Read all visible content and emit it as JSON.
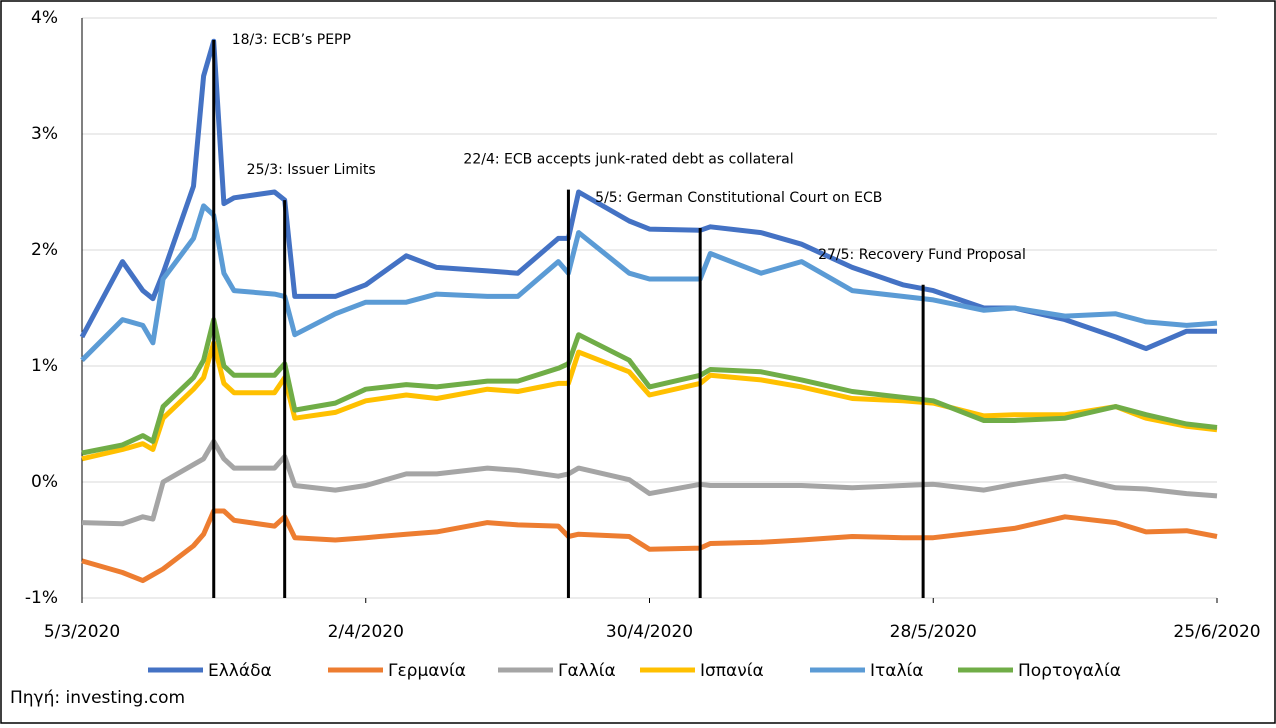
{
  "chart_data": {
    "type": "line",
    "x": [
      "2020-03-05",
      "2020-03-09",
      "2020-03-11",
      "2020-03-12",
      "2020-03-13",
      "2020-03-16",
      "2020-03-17",
      "2020-03-18",
      "2020-03-19",
      "2020-03-20",
      "2020-03-24",
      "2020-03-25",
      "2020-03-26",
      "2020-03-30",
      "2020-04-02",
      "2020-04-06",
      "2020-04-09",
      "2020-04-14",
      "2020-04-17",
      "2020-04-21",
      "2020-04-22",
      "2020-04-23",
      "2020-04-28",
      "2020-04-30",
      "2020-05-05",
      "2020-05-06",
      "2020-05-11",
      "2020-05-15",
      "2020-05-20",
      "2020-05-25",
      "2020-05-28",
      "2020-06-02",
      "2020-06-05",
      "2020-06-10",
      "2020-06-15",
      "2020-06-18",
      "2020-06-22",
      "2020-06-25"
    ],
    "series": [
      {
        "name": "Ελλάδα",
        "color": "#4472c4",
        "values": [
          1.25,
          1.9,
          1.65,
          1.58,
          1.8,
          2.55,
          3.5,
          3.8,
          2.4,
          2.45,
          2.5,
          2.43,
          1.6,
          1.6,
          1.7,
          1.95,
          1.85,
          1.82,
          1.8,
          2.1,
          2.1,
          2.5,
          2.25,
          2.18,
          2.17,
          2.2,
          2.15,
          2.05,
          1.85,
          1.7,
          1.65,
          1.5,
          1.5,
          1.4,
          1.25,
          1.15,
          1.3,
          1.3
        ]
      },
      {
        "name": "Γερμανία",
        "color": "#ed7d31",
        "values": [
          -0.68,
          -0.78,
          -0.85,
          -0.8,
          -0.75,
          -0.55,
          -0.45,
          -0.25,
          -0.25,
          -0.33,
          -0.38,
          -0.3,
          -0.48,
          -0.5,
          -0.48,
          -0.45,
          -0.43,
          -0.35,
          -0.37,
          -0.38,
          -0.47,
          -0.45,
          -0.47,
          -0.58,
          -0.57,
          -0.53,
          -0.52,
          -0.5,
          -0.47,
          -0.48,
          -0.48,
          -0.43,
          -0.4,
          -0.3,
          -0.35,
          -0.43,
          -0.42,
          -0.47
        ]
      },
      {
        "name": "Γαλλία",
        "color": "#a5a5a5",
        "values": [
          -0.35,
          -0.36,
          -0.3,
          -0.32,
          0.0,
          0.15,
          0.2,
          0.35,
          0.2,
          0.12,
          0.12,
          0.22,
          -0.03,
          -0.07,
          -0.03,
          0.07,
          0.07,
          0.12,
          0.1,
          0.05,
          0.07,
          0.12,
          0.02,
          -0.1,
          -0.02,
          -0.03,
          -0.03,
          -0.03,
          -0.05,
          -0.03,
          -0.02,
          -0.07,
          -0.02,
          0.05,
          -0.05,
          -0.06,
          -0.1,
          -0.12
        ]
      },
      {
        "name": "Ισπανία",
        "color": "#ffc000",
        "values": [
          0.2,
          0.28,
          0.33,
          0.28,
          0.55,
          0.8,
          0.9,
          1.2,
          0.85,
          0.77,
          0.77,
          0.9,
          0.55,
          0.6,
          0.7,
          0.75,
          0.72,
          0.8,
          0.78,
          0.85,
          0.85,
          1.12,
          0.95,
          0.75,
          0.85,
          0.92,
          0.88,
          0.82,
          0.72,
          0.7,
          0.68,
          0.57,
          0.58,
          0.58,
          0.65,
          0.55,
          0.48,
          0.45
        ]
      },
      {
        "name": "Ιταλία",
        "color": "#5b9bd5",
        "values": [
          1.05,
          1.4,
          1.35,
          1.2,
          1.75,
          2.1,
          2.38,
          2.3,
          1.8,
          1.65,
          1.62,
          1.6,
          1.27,
          1.45,
          1.55,
          1.55,
          1.62,
          1.6,
          1.6,
          1.9,
          1.8,
          2.15,
          1.8,
          1.75,
          1.75,
          1.97,
          1.8,
          1.9,
          1.65,
          1.6,
          1.57,
          1.48,
          1.5,
          1.43,
          1.45,
          1.38,
          1.35,
          1.37
        ]
      },
      {
        "name": "Πορτογαλία",
        "color": "#70ad47",
        "values": [
          0.25,
          0.32,
          0.4,
          0.35,
          0.65,
          0.9,
          1.05,
          1.4,
          1.0,
          0.92,
          0.92,
          1.02,
          0.62,
          0.68,
          0.8,
          0.84,
          0.82,
          0.87,
          0.87,
          0.98,
          1.02,
          1.27,
          1.05,
          0.82,
          0.92,
          0.97,
          0.95,
          0.88,
          0.78,
          0.73,
          0.7,
          0.53,
          0.53,
          0.55,
          0.65,
          0.58,
          0.5,
          0.47
        ]
      }
    ],
    "xlim": [
      "2020-03-05",
      "2020-06-25"
    ],
    "xticks": [
      {
        "value": "2020-03-05",
        "label": "5/3/2020"
      },
      {
        "value": "2020-04-02",
        "label": "2/4/2020"
      },
      {
        "value": "2020-04-30",
        "label": "30/4/2020"
      },
      {
        "value": "2020-05-28",
        "label": "28/5/2020"
      },
      {
        "value": "2020-06-25",
        "label": "25/6/2020"
      }
    ],
    "ylim": [
      -1,
      4
    ],
    "yticks": [
      {
        "value": -1,
        "label": "-1%"
      },
      {
        "value": 0,
        "label": "0%"
      },
      {
        "value": 1,
        "label": "1%"
      },
      {
        "value": 2,
        "label": "2%"
      },
      {
        "value": 3,
        "label": "3%"
      },
      {
        "value": 4,
        "label": "4%"
      }
    ],
    "grid": true,
    "annotations": [
      {
        "text": "18/3: ECB’s PEPP",
        "x": "2020-03-18",
        "y": 3.81
      },
      {
        "text": "25/3: Issuer Limits",
        "x": "2020-03-25",
        "y": 2.43
      },
      {
        "text": "22/4: ECB accepts junk-rated debt as collateral",
        "x": "2020-04-22",
        "y": 2.52
      },
      {
        "text": "5/5: German Constitutional Court on ECB",
        "x": "2020-05-05",
        "y": 2.19
      },
      {
        "text": "27/5: Recovery Fund Proposal",
        "x": "2020-05-27",
        "y": 1.7
      }
    ],
    "legend": "bottom",
    "source": "Πηγή: investing.com"
  }
}
